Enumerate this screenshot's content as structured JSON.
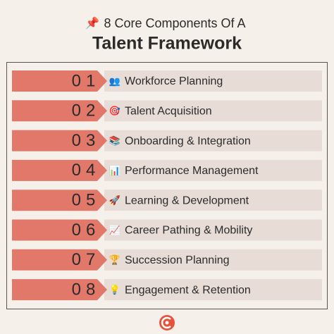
{
  "header": {
    "icon": "📌",
    "title_line1": "8 Core Components Of A",
    "title_line2": "Talent Framework"
  },
  "items": [
    {
      "number": "01",
      "icon": "👥",
      "label": "Workforce Planning"
    },
    {
      "number": "02",
      "icon": "🎯",
      "label": "Talent Acquisition"
    },
    {
      "number": "03",
      "icon": "📚",
      "label": "Onboarding & Integration"
    },
    {
      "number": "04",
      "icon": "📊",
      "label": "Performance Management"
    },
    {
      "number": "05",
      "icon": "🚀",
      "label": "Learning & Development"
    },
    {
      "number": "06",
      "icon": "📈",
      "label": "Career Pathing & Mobility"
    },
    {
      "number": "07",
      "icon": "🏆",
      "label": "Succession Planning"
    },
    {
      "number": "08",
      "icon": "💡",
      "label": "Engagement & Retention"
    }
  ]
}
